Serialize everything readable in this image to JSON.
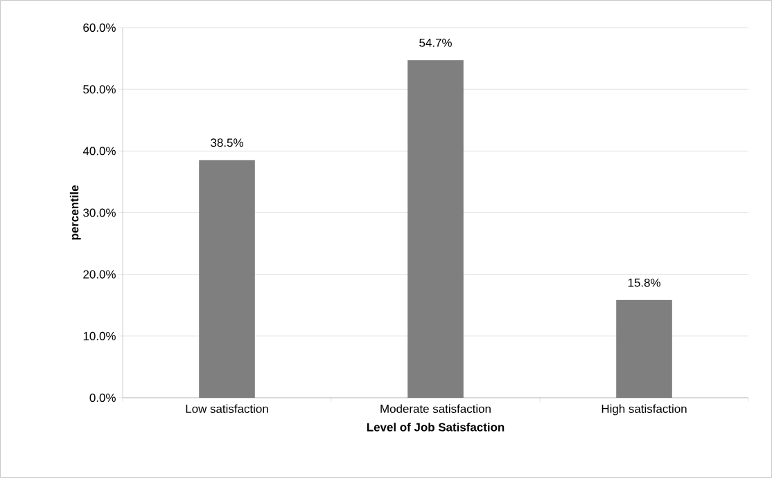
{
  "chart_data": {
    "type": "bar",
    "xlabel": "Level of Job Satisfaction",
    "ylabel": "percentile",
    "categories": [
      "Low satisfaction",
      "Moderate satisfaction",
      "High satisfaction"
    ],
    "values": [
      38.5,
      54.7,
      15.8
    ],
    "value_labels": [
      "38.5%",
      "54.7%",
      "15.8%"
    ],
    "color": "#7f7f7f",
    "ylim": [
      0,
      60
    ],
    "yticks": [
      {
        "value": 0,
        "label": "0.0%"
      },
      {
        "value": 10,
        "label": "10.0%"
      },
      {
        "value": 20,
        "label": "20.0%"
      },
      {
        "value": 30,
        "label": "30.0%"
      },
      {
        "value": 40,
        "label": "40.0%"
      },
      {
        "value": 50,
        "label": "50.0%"
      },
      {
        "value": 60,
        "label": "60.0%"
      }
    ],
    "grid": "y"
  }
}
